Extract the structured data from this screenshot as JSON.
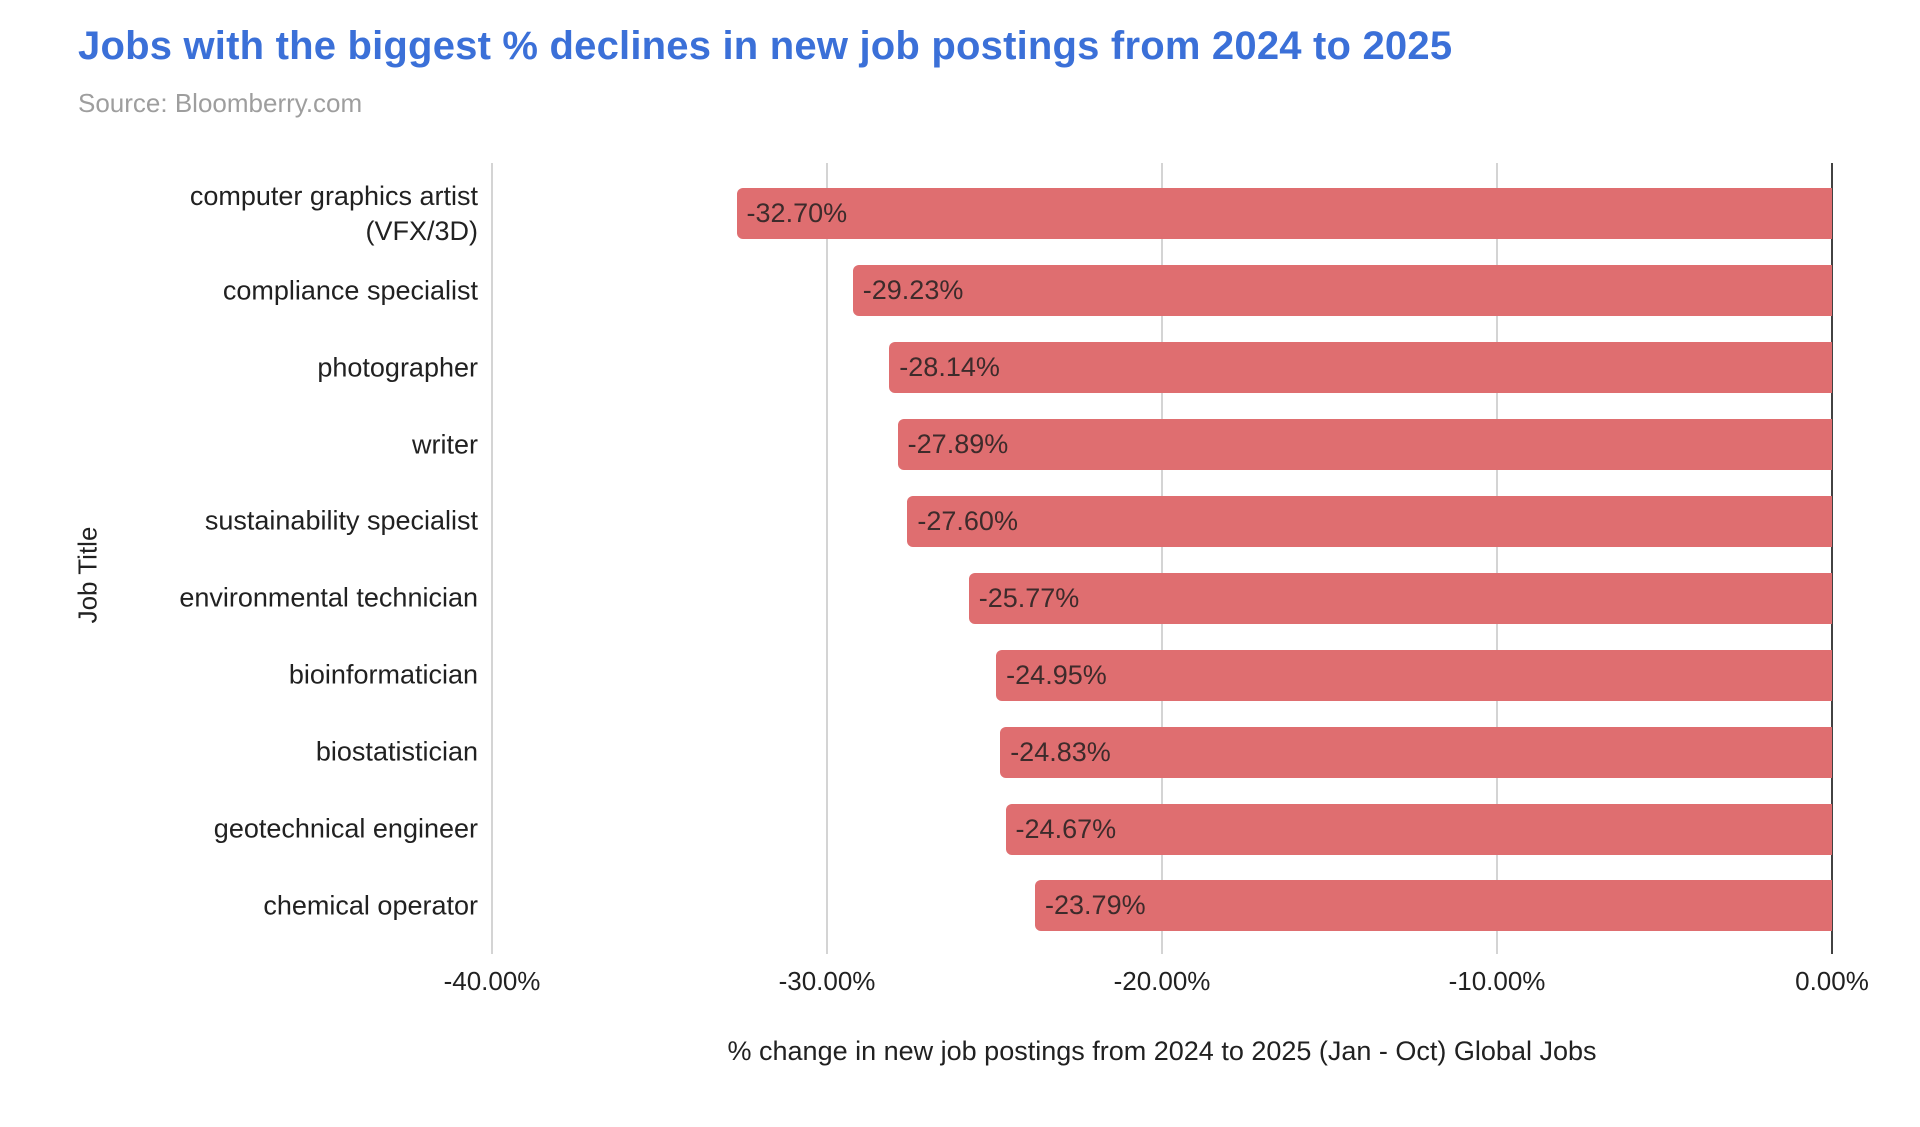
{
  "header": {
    "title": "Jobs with the biggest % declines in new job postings from 2024 to 2025",
    "source": "Source: Bloomberry.com"
  },
  "chart_data": {
    "type": "bar",
    "orientation": "horizontal",
    "title": "Jobs with the biggest % declines in new job postings from 2024 to 2025",
    "categories": [
      "computer graphics artist (VFX/3D)",
      "compliance specialist",
      "photographer",
      "writer",
      "sustainability specialist",
      "environmental technician",
      "bioinformatician",
      "biostatistician",
      "geotechnical engineer",
      "chemical operator"
    ],
    "values": [
      -32.7,
      -29.23,
      -28.14,
      -27.89,
      -27.6,
      -25.77,
      -24.95,
      -24.83,
      -24.67,
      -23.79
    ],
    "value_labels": [
      "-32.70%",
      "-29.23%",
      "-28.14%",
      "-27.89%",
      "-27.60%",
      "-25.77%",
      "-24.95%",
      "-24.83%",
      "-24.67%",
      "-23.79%"
    ],
    "xlabel": "% change in new job postings from 2024 to 2025 (Jan - Oct) Global Jobs",
    "ylabel": "Job Title",
    "xlim": [
      -40,
      0
    ],
    "xticks": [
      "-40.00%",
      "-30.00%",
      "-20.00%",
      "-10.00%",
      "0.00%"
    ],
    "xtick_values": [
      -40,
      -30,
      -20,
      -10,
      0
    ],
    "grid": true,
    "legend": false,
    "colors": {
      "bar": "#df6e70",
      "title": "#3b70d8",
      "source_text": "#9e9e9e",
      "axis_text": "#212121",
      "value_label_text": "#3d2b2b",
      "gridline": "#d4d4d4",
      "zero_line": "#424242",
      "background": "#ffffff"
    }
  }
}
